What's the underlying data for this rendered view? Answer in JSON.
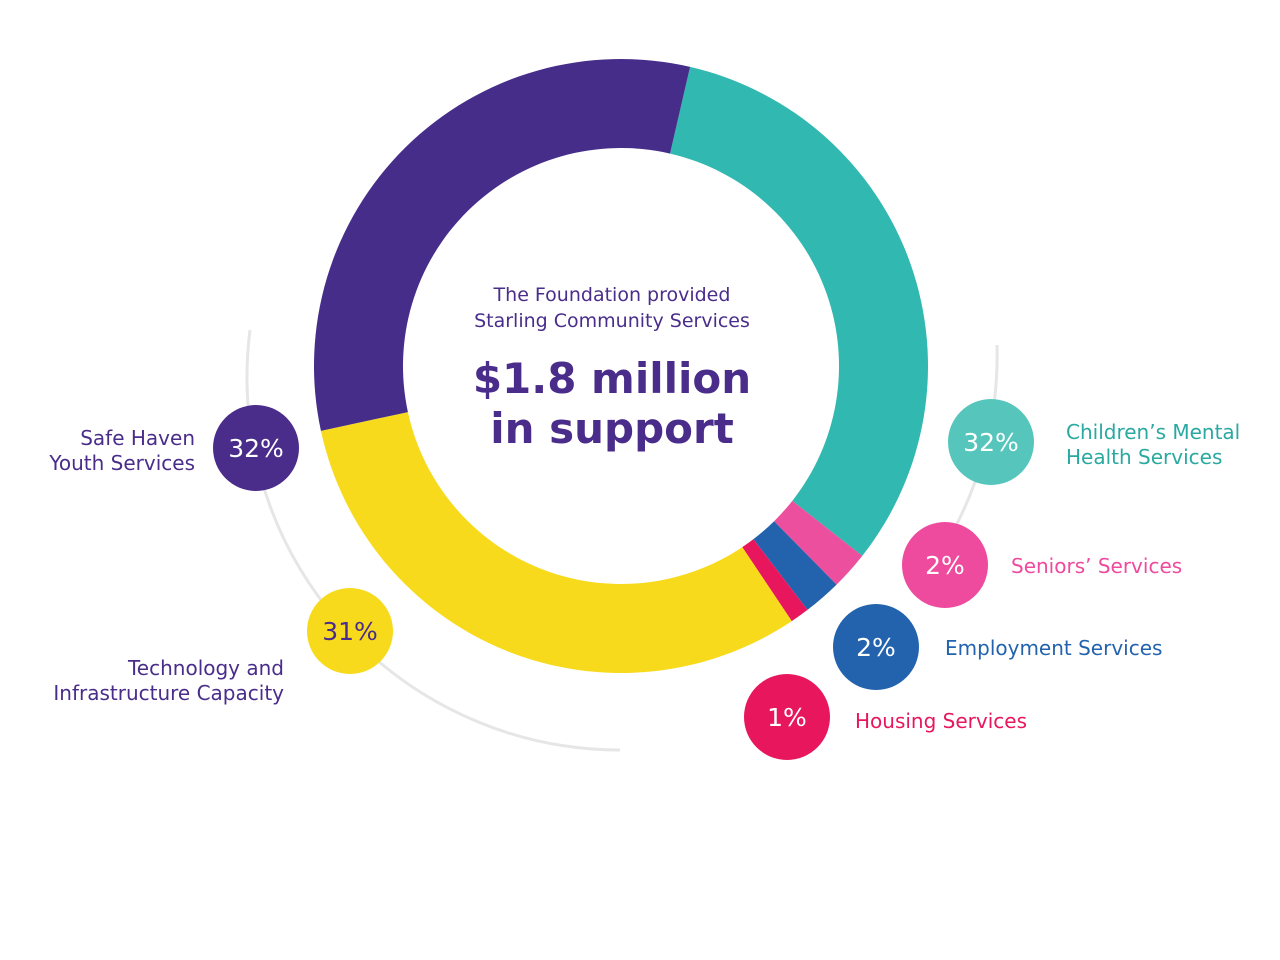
{
  "chart_data": {
    "type": "pie",
    "title": "",
    "center": {
      "subtitle_lines": [
        "The Foundation provided",
        "Starling Community Services"
      ],
      "headline_lines": [
        "$1.8 million",
        "in support"
      ]
    },
    "slices": [
      {
        "label_lines": [
          "Children’s Mental",
          "Health Services"
        ],
        "value": 32,
        "display": "32%",
        "color": "#31b8b0",
        "badge_color": "#56c6bd",
        "text_color": "#2aa9a1"
      },
      {
        "label_lines": [
          "Seniors’ Services"
        ],
        "value": 2,
        "display": "2%",
        "color": "#ec4f9d",
        "badge_color": "#ee4a9e",
        "text_color": "#ee4a9e"
      },
      {
        "label_lines": [
          "Employment Services"
        ],
        "value": 2,
        "display": "2%",
        "color": "#2363ad",
        "badge_color": "#2363ad",
        "text_color": "#2363ad"
      },
      {
        "label_lines": [
          "Housing Services"
        ],
        "value": 1,
        "display": "1%",
        "color": "#e8175d",
        "badge_color": "#e8175d",
        "text_color": "#e8175d"
      },
      {
        "label_lines": [
          "Technology and",
          "Infrastructure Capacity"
        ],
        "value": 31,
        "display": "31%",
        "color": "#f8da1c",
        "badge_color": "#f8da1c",
        "text_color": "#4a2d8a"
      },
      {
        "label_lines": [
          "Safe Haven",
          "Youth Services"
        ],
        "value": 32,
        "display": "32%",
        "color": "#472d8a",
        "badge_color": "#4a2d8a",
        "text_color": "#4a2d8a"
      }
    ]
  }
}
